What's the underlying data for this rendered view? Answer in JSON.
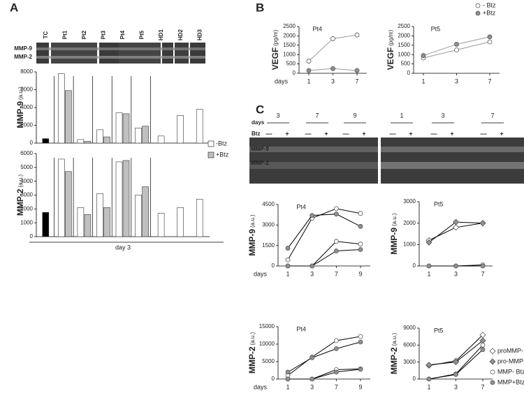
{
  "panel_a": {
    "letter": "A",
    "gel_labels": [
      "MMP-9",
      "MMP-2"
    ]
  },
  "panel_b": {
    "letter": "B"
  },
  "panel_c": {
    "letter": "C",
    "days_label": "days",
    "btz_label": "Btz",
    "days": [
      "3",
      "7",
      "9",
      "1",
      "3",
      "7"
    ],
    "btz": [
      "—",
      "+",
      "—",
      "+",
      "—",
      "+",
      "—",
      "+",
      "—",
      "+",
      "—",
      "+"
    ],
    "gel_labels": [
      "MMP-9",
      "MMP-2"
    ]
  },
  "chart_data": [
    {
      "type": "bar",
      "ylabel": "MMP-9",
      "ylabel_unit": "(a.u.)",
      "legend": "right",
      "categories": [
        "TC",
        "Pt1",
        "Pt2",
        "Pt3",
        "Pt4",
        "Pt5",
        "HD1",
        "HD2",
        "HD3"
      ],
      "ylim": [
        0,
        8000
      ],
      "yticks": [
        0,
        2000,
        4000,
        6000,
        8000
      ],
      "series": [
        {
          "color": "#000000",
          "values": [
            500,
            null,
            null,
            null,
            null,
            null,
            null,
            null,
            null
          ]
        },
        {
          "name": "-Btz",
          "color": "#ffffff",
          "values": [
            null,
            7800,
            400,
            1500,
            3400,
            1700,
            800,
            3100,
            3800
          ]
        },
        {
          "name": "+Btz",
          "color": "#c0c0c0",
          "values": [
            null,
            5900,
            200,
            700,
            3300,
            1900,
            null,
            null,
            null
          ]
        }
      ]
    },
    {
      "type": "bar",
      "ylabel": "MMP-2",
      "ylabel_unit": "(a.u.)",
      "xlabel": "day 3",
      "ylim": [
        0,
        6000
      ],
      "yticks": [
        0,
        1000,
        2000,
        3000,
        4000,
        5000,
        6000
      ],
      "series": [
        {
          "color": "#000000",
          "values": [
            1750,
            null,
            null,
            null,
            null,
            null,
            null,
            null,
            null
          ]
        },
        {
          "color": "#ffffff",
          "values": [
            null,
            5600,
            2100,
            3100,
            5400,
            3000,
            1700,
            2100,
            2700
          ]
        },
        {
          "color": "#c0c0c0",
          "values": [
            null,
            4700,
            1600,
            2100,
            5500,
            3600,
            null,
            null,
            null
          ]
        }
      ]
    },
    {
      "type": "line",
      "title": "Pt4",
      "ylabel": "VEGF",
      "ylabel_unit": "(pg/m)",
      "xlabel": "days",
      "line_color": "#999999",
      "categories": [
        "1",
        "3",
        "7"
      ],
      "ylim": [
        0,
        2500
      ],
      "yticks": [
        0,
        500,
        1000,
        1500,
        2000,
        2500
      ],
      "series": [
        {
          "color": "#ffffff",
          "marker": "circle",
          "values": [
            650,
            1850,
            2050
          ]
        },
        {
          "color": "#909090",
          "marker": "circle",
          "values": [
            150,
            250,
            150
          ]
        }
      ]
    },
    {
      "type": "line",
      "title": "Pt5",
      "ylabel": "VEGF",
      "ylabel_unit": "(pg/m)",
      "line_color": "#999999",
      "legend": "top-right",
      "categories": [
        "1",
        "3",
        "7"
      ],
      "ylim": [
        0,
        2500
      ],
      "yticks": [
        0,
        500,
        1000,
        1500,
        2000,
        2500
      ],
      "series": [
        {
          "name": "- Btz",
          "color": "#ffffff",
          "marker": "circle",
          "values": [
            820,
            1250,
            1680
          ]
        },
        {
          "name": "+Btz",
          "color": "#909090",
          "marker": "circle",
          "values": [
            950,
            1550,
            1950
          ]
        }
      ]
    },
    {
      "type": "line",
      "title": "Pt4",
      "ylabel": "MMP-9",
      "ylabel_unit": "(a.u.)",
      "xlabel": "days",
      "line_color": "#000000",
      "categories": [
        "1",
        "3",
        "7",
        "9"
      ],
      "ylim": [
        0,
        4500
      ],
      "yticks": [
        0,
        1500,
        3000,
        4500
      ],
      "series": [
        {
          "color": "#ffffff",
          "marker": "circle",
          "values": [
            450,
            3500,
            4200,
            3850
          ]
        },
        {
          "color": "#909090",
          "marker": "circle",
          "values": [
            1300,
            3700,
            3800,
            2900
          ]
        },
        {
          "color": "#ffffff",
          "marker": "circle",
          "values": [
            0,
            0,
            1800,
            1600
          ]
        },
        {
          "color": "#909090",
          "marker": "circle",
          "values": [
            0,
            0,
            1100,
            1200
          ]
        }
      ]
    },
    {
      "type": "line",
      "title": "Pt5",
      "ylabel": "MMP-9",
      "ylabel_unit": "(a.u.)",
      "line_color": "#000000",
      "legend": "bottom-right",
      "categories": [
        "1",
        "3",
        "7"
      ],
      "ylim": [
        0,
        3000
      ],
      "yticks": [
        0,
        1000,
        2000,
        3000
      ],
      "series": [
        {
          "name": "proMMP- Btz",
          "color": "#ffffff",
          "marker": "diamond",
          "values": [
            1200,
            1800,
            2000
          ]
        },
        {
          "name": "pro-MMP+Btz",
          "color": "#909090",
          "marker": "diamond",
          "values": [
            1100,
            2050,
            2000
          ]
        },
        {
          "name": "MMP- Btz",
          "color": "#ffffff",
          "marker": "circle",
          "values": [
            0,
            0,
            50
          ]
        },
        {
          "name": "MMP+Btz",
          "color": "#909090",
          "marker": "circle",
          "values": [
            0,
            0,
            0
          ]
        }
      ]
    },
    {
      "type": "line",
      "title": "Pt4",
      "ylabel": "MMP-2",
      "ylabel_unit": "(a.u.)",
      "xlabel": "days",
      "line_color": "#000000",
      "categories": [
        "1",
        "3",
        "7",
        "9"
      ],
      "ylim": [
        0,
        15000
      ],
      "yticks": [
        0,
        5000,
        10000,
        15000
      ],
      "series": [
        {
          "color": "#ffffff",
          "marker": "circle",
          "values": [
            1000,
            6300,
            11000,
            12200
          ]
        },
        {
          "color": "#909090",
          "marker": "circle",
          "values": [
            2000,
            6100,
            8700,
            10600
          ]
        },
        {
          "color": "#ffffff",
          "marker": "circle",
          "values": [
            0,
            0,
            2700,
            2900
          ]
        },
        {
          "color": "#909090",
          "marker": "circle",
          "values": [
            0,
            0,
            2000,
            2800
          ]
        }
      ]
    },
    {
      "type": "line",
      "title": "Pt5",
      "ylabel": "MMP-2",
      "ylabel_unit": "(a.u.)",
      "line_color": "#000000",
      "categories": [
        "1",
        "3",
        "7"
      ],
      "ylim": [
        0,
        9000
      ],
      "yticks": [
        0,
        3000,
        6000,
        9000
      ],
      "series": [
        {
          "color": "#ffffff",
          "marker": "diamond",
          "values": [
            2400,
            3200,
            7800
          ]
        },
        {
          "color": "#909090",
          "marker": "diamond",
          "values": [
            2500,
            3000,
            6800
          ]
        },
        {
          "color": "#ffffff",
          "marker": "circle",
          "values": [
            0,
            900,
            6000
          ]
        },
        {
          "color": "#909090",
          "marker": "circle",
          "values": [
            0,
            800,
            5200
          ]
        }
      ]
    }
  ]
}
